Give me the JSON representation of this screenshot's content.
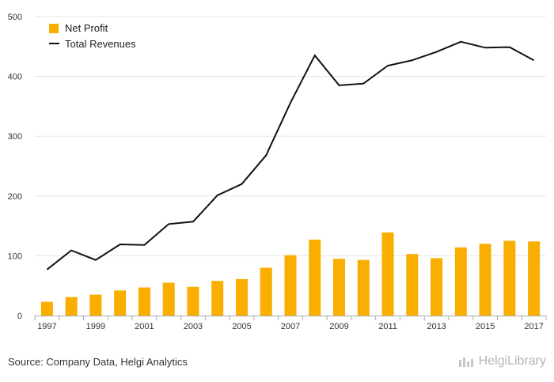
{
  "chart_data": {
    "type": "bar+line",
    "x": [
      1997,
      1998,
      1999,
      2000,
      2001,
      2002,
      2003,
      2004,
      2005,
      2006,
      2007,
      2008,
      2009,
      2010,
      2011,
      2012,
      2013,
      2014,
      2015,
      2016,
      2017
    ],
    "x_tick_labels": [
      "1997",
      "1999",
      "2001",
      "2003",
      "2005",
      "2007",
      "2009",
      "2011",
      "2013",
      "2015",
      "2017"
    ],
    "series": [
      {
        "name": "Net Profit",
        "kind": "bar",
        "color": "#f9ae00",
        "values": [
          23,
          31,
          35,
          42,
          47,
          55,
          48,
          58,
          61,
          80,
          101,
          127,
          95,
          93,
          139,
          103,
          96,
          114,
          120,
          125,
          124
        ]
      },
      {
        "name": "Total Revenues",
        "kind": "line",
        "color": "#111111",
        "values": [
          77,
          109,
          93,
          119,
          118,
          153,
          157,
          201,
          220,
          268,
          356,
          435,
          385,
          388,
          418,
          427,
          441,
          458,
          448,
          449,
          427
        ]
      }
    ],
    "ylim": [
      0,
      500
    ],
    "y_ticks": [
      0,
      100,
      200,
      300,
      400,
      500
    ],
    "grid": true,
    "legend_position": "top-left",
    "title": "",
    "xlabel": "",
    "ylabel": ""
  },
  "footer": {
    "source": "Source: Company Data, Helgi Analytics",
    "brand": "HelgiLibrary",
    "brand_icon": "helgi-library-logo-icon"
  }
}
